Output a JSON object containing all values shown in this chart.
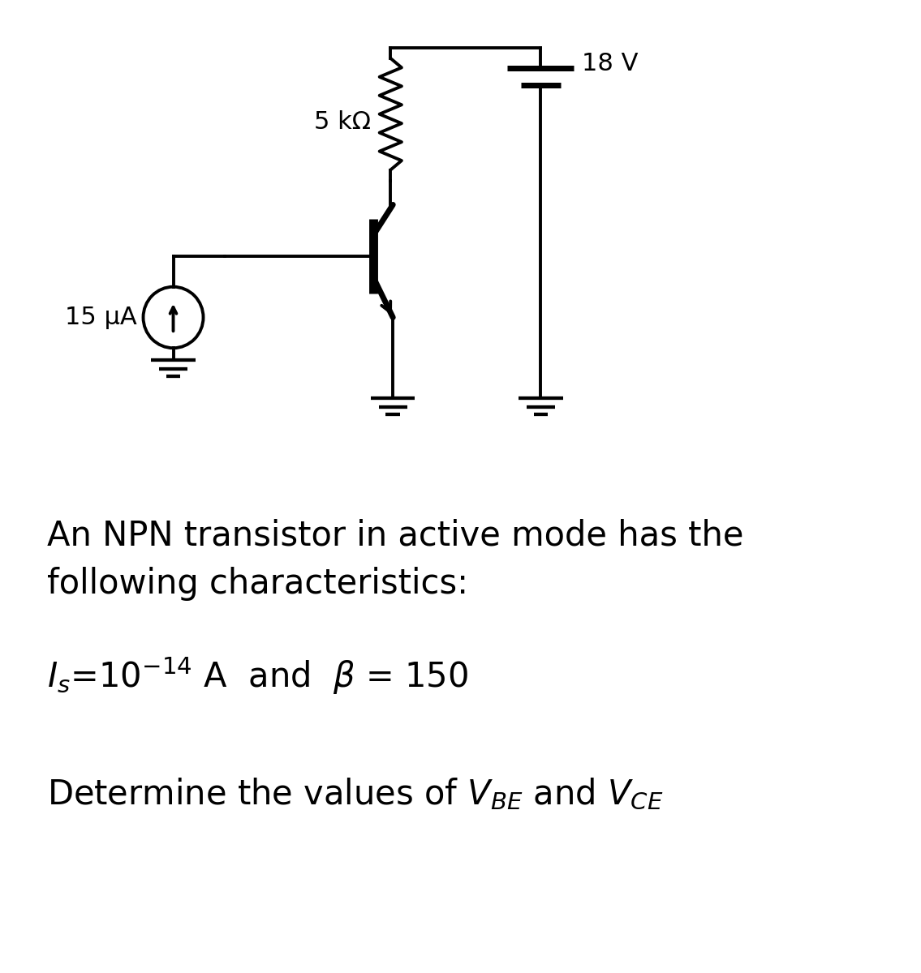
{
  "bg_color": "#ffffff",
  "text_color": "#000000",
  "line_color": "#000000",
  "lw": 2.8,
  "circuit_label_resistor": "5 kΩ",
  "circuit_label_voltage": "18 V",
  "circuit_label_current": "15 μA",
  "text1": "An NPN transistor in active mode has the",
  "text2": "following characteristics:",
  "text3a": "I",
  "text3b": "s",
  "text3c": "=10",
  "text3d": "-14",
  "text3e": " A  and  β = 150",
  "text4": "Determine the values of V",
  "text4_sub1": "BE",
  "text4_mid": " and V",
  "text4_sub2": "CE",
  "fontsize_main": 30,
  "fontsize_label": 22
}
